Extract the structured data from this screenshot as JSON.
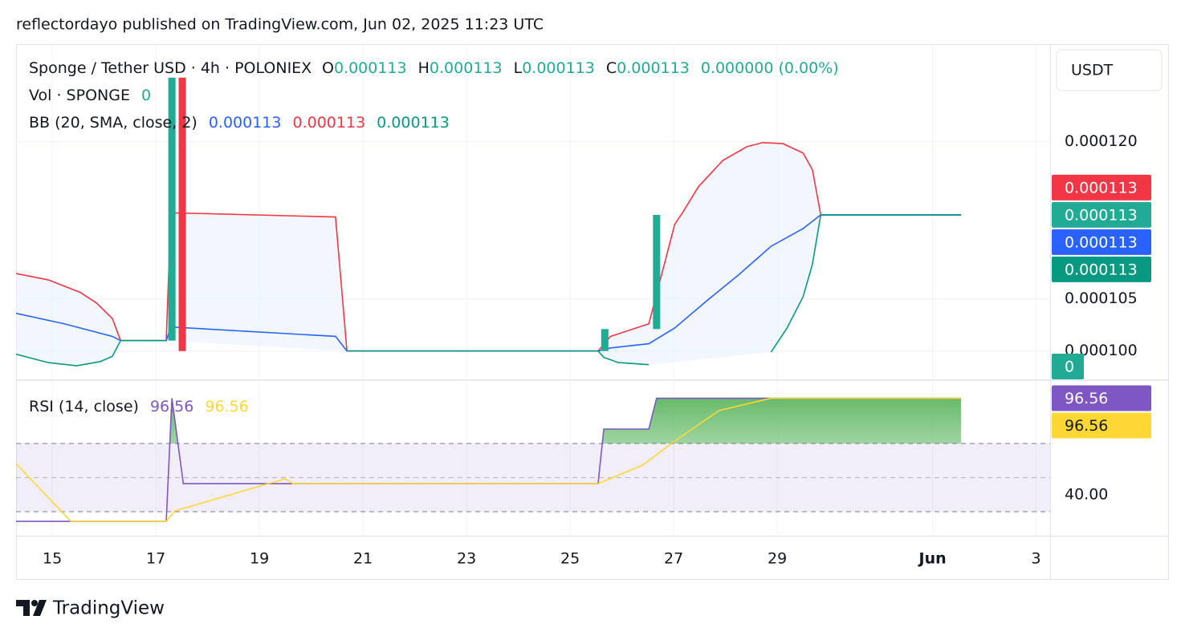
{
  "header": {
    "publisher": "reflectordayo published on TradingView.com, Jun 02, 2025 11:23 UTC"
  },
  "currency": "USDT",
  "footer": {
    "brand": "TradingView"
  },
  "chart_data": [
    {
      "type": "line",
      "legend": {
        "symbol": "Sponge / Tether USD · 4h · POLONIEX",
        "ohlc": [
          {
            "label": "O",
            "value": "0.000113"
          },
          {
            "label": "H",
            "value": "0.000113"
          },
          {
            "label": "L",
            "value": "0.000113"
          },
          {
            "label": "C",
            "value": "0.000113"
          }
        ],
        "change": "0.000000 (0.00%)",
        "volume": "Vol · SPONGE",
        "volume_value": "0",
        "indicator": "BB (20, SMA, close, 2)",
        "indicator_values": [
          "0.000113",
          "0.000113",
          "0.000113"
        ]
      },
      "xlim": [
        14.3,
        34.27
      ],
      "ylim": [
        9.73e-05,
        0.0001293
      ],
      "yticks": [
        {
          "value": 0.00012,
          "label": "0.000120"
        },
        {
          "value": 0.000105,
          "label": "0.000105"
        },
        {
          "value": 0.0001,
          "label": "0.000100"
        }
      ],
      "grid": true,
      "fill_color": "#e8f1fa",
      "candles": [
        {
          "x": 17.31,
          "open": 0.000101,
          "close": 0.0001261,
          "color": "#22ab94"
        },
        {
          "x": 17.51,
          "open": 0.0001261,
          "close": 0.0001,
          "color": "#f23645"
        },
        {
          "x": 25.67,
          "open": 0.0001,
          "close": 0.0001021,
          "color": "#22ab94"
        },
        {
          "x": 26.67,
          "open": 0.0001021,
          "close": 0.000113,
          "color": "#22ab94"
        }
      ],
      "series": [
        {
          "color": "#f23645",
          "x": [
            14.3,
            14.92,
            15.54,
            15.85,
            16.16,
            16.32,
            17.2,
            17.29,
            20.47,
            20.69,
            25.54,
            25.78,
            26.52,
            27.02,
            27.17,
            27.48,
            27.95,
            28.41,
            28.72,
            29.11,
            29.5,
            29.68,
            29.84,
            32.55
          ],
          "values": [
            0.0001074,
            0.0001068,
            0.0001056,
            0.0001046,
            0.0001031,
            0.000101,
            0.000101,
            0.0001132,
            0.0001128,
            0.0001,
            0.0001,
            0.0001014,
            0.0001026,
            0.0001121,
            0.0001132,
            0.0001157,
            0.0001182,
            0.0001195,
            0.0001199,
            0.0001198,
            0.0001189,
            0.0001173,
            0.000113,
            0.000113
          ]
        },
        {
          "color": "#2962ff",
          "x": [
            14.3,
            15.23,
            16.16,
            16.32,
            17.2,
            17.29,
            20.47,
            20.69,
            25.54,
            25.78,
            26.52,
            27.02,
            27.64,
            28.26,
            28.88,
            29.5,
            29.84,
            32.55
          ],
          "values": [
            0.0001036,
            0.0001026,
            0.0001014,
            0.000101,
            0.000101,
            0.0001023,
            0.0001014,
            0.0001,
            0.0001,
            0.0001003,
            0.0001007,
            0.0001022,
            0.0001048,
            0.0001073,
            0.00011,
            0.0001117,
            0.000113,
            0.000113
          ]
        },
        {
          "color": "#089981",
          "x": [
            14.3,
            14.92,
            15.47,
            15.93,
            16.16,
            16.32,
            17.2,
            null,
            20.69,
            25.54,
            25.65,
            25.93,
            26.52,
            null,
            28.88,
            29.19,
            29.5,
            29.68,
            29.84,
            32.55
          ],
          "values": [
            9.97e-05,
            9.89e-05,
            9.86e-05,
            9.9e-05,
            9.95e-05,
            0.000101,
            0.000101,
            null,
            0.0001,
            0.0001,
            9.94e-05,
            9.89e-05,
            9.87e-05,
            null,
            9.99e-05,
            0.0001022,
            0.0001052,
            0.0001083,
            0.000113,
            0.000113
          ]
        }
      ],
      "price_labels": [
        {
          "value": 0.000113,
          "color": "#f23645"
        },
        {
          "value": 0.000113,
          "color": "#22ab94"
        },
        {
          "value": 0.000113,
          "color": "#2962ff"
        },
        {
          "value": 0.000113,
          "color": "#089981"
        }
      ],
      "volume_label": {
        "value": 0,
        "color": "#22ab94"
      }
    },
    {
      "type": "line",
      "legend": {
        "indicator": "RSI (14, close)",
        "indicator_values": [
          "96.56",
          "96.56"
        ]
      },
      "xlim": [
        14.3,
        34.27
      ],
      "xticks": [
        15,
        17,
        19,
        21,
        23,
        25,
        27,
        29,
        {
          "value": 32,
          "label": "Jun"
        },
        {
          "value": 34,
          "label": "3"
        }
      ],
      "ylim": [
        15.9,
        106.7
      ],
      "yticks": [
        {
          "value": 40,
          "label": "40.00"
        }
      ],
      "levels": [
        70,
        50,
        30
      ],
      "series": [
        {
          "color": "#7e57c2",
          "x": [
            14.3,
            17.2,
            17.31,
            17.53,
            25.54,
            25.65,
            26.52,
            26.67,
            32.55
          ],
          "values": [
            24.35,
            24.35,
            96.56,
            46.47,
            46.47,
            78.47,
            78.47,
            96.56,
            96.56
          ]
        },
        {
          "color": "#fdd835",
          "x": [
            14.3,
            14.77,
            15.36,
            17.2,
            17.37,
            18.64,
            19.5,
            19.65,
            25.54,
            26.4,
            27.02,
            27.87,
            28.88,
            32.55
          ],
          "values": [
            58.24,
            43.18,
            24.35,
            24.35,
            30.47,
            41.76,
            49.29,
            46.47,
            46.47,
            57.29,
            71.41,
            89.29,
            96.56,
            96.56
          ]
        }
      ],
      "price_labels": [
        {
          "value": 96.56,
          "color": "#7e57c2"
        },
        {
          "value": 96.56,
          "color": "#fdd835"
        }
      ]
    }
  ]
}
